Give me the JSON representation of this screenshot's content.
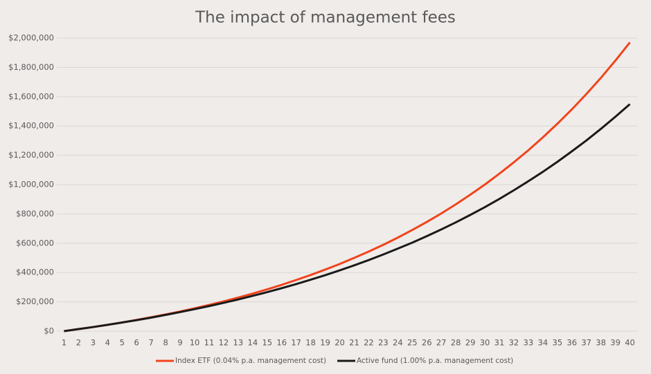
{
  "chart_data": {
    "type": "line",
    "title": "The impact of management fees",
    "categories": [
      "1",
      "2",
      "3",
      "4",
      "5",
      "6",
      "7",
      "8",
      "9",
      "10",
      "11",
      "12",
      "13",
      "14",
      "15",
      "16",
      "17",
      "18",
      "19",
      "20",
      "21",
      "22",
      "23",
      "24",
      "25",
      "26",
      "27",
      "28",
      "29",
      "30",
      "31",
      "32",
      "33",
      "34",
      "35",
      "36",
      "37",
      "38",
      "39",
      "40"
    ],
    "series": [
      {
        "name": "Index ETF (0.04% p.a. management cost)",
        "color": "#f0441c",
        "values": [
          0,
          14000,
          28000,
          43000,
          59000,
          77000,
          95000,
          114000,
          134000,
          156000,
          179000,
          203000,
          229000,
          256000,
          285000,
          316000,
          349000,
          383000,
          420000,
          458000,
          500000,
          543000,
          589000,
          638000,
          690000,
          745000,
          803000,
          865000,
          931000,
          1000000,
          1074000,
          1152000,
          1234000,
          1322000,
          1415000,
          1513000,
          1618000,
          1728000,
          1846000,
          1970000
        ]
      },
      {
        "name": "Active fund (1.00% p.a. management cost)",
        "color": "#1a1a1a",
        "values": [
          0,
          14000,
          28000,
          43000,
          59000,
          75000,
          92000,
          111000,
          130000,
          150000,
          171000,
          193000,
          216000,
          241000,
          266000,
          293000,
          321000,
          351000,
          382000,
          415000,
          449000,
          485000,
          523000,
          563000,
          604000,
          648000,
          694000,
          742000,
          793000,
          846000,
          902000,
          961000,
          1023000,
          1087000,
          1155000,
          1227000,
          1301000,
          1380000,
          1463000,
          1549000
        ]
      }
    ],
    "ylim": [
      0,
      2000000
    ],
    "yticks": [
      {
        "value": 0,
        "label": "$0"
      },
      {
        "value": 200000,
        "label": "$200,000"
      },
      {
        "value": 400000,
        "label": "$400,000"
      },
      {
        "value": 600000,
        "label": "$600,000"
      },
      {
        "value": 800000,
        "label": "$800,000"
      },
      {
        "value": 1000000,
        "label": "$1,000,000"
      },
      {
        "value": 1200000,
        "label": "$1,200,000"
      },
      {
        "value": 1400000,
        "label": "$1,400,000"
      },
      {
        "value": 1600000,
        "label": "$1,600,000"
      },
      {
        "value": 1800000,
        "label": "$1,800,000"
      },
      {
        "value": 2000000,
        "label": "$2,000,000"
      }
    ],
    "grid": true,
    "legend": "bottom"
  }
}
